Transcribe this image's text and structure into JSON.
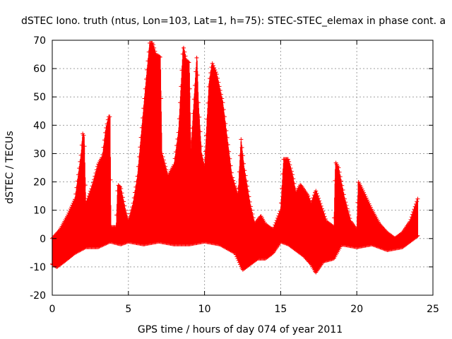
{
  "chart_data": {
    "type": "scatter",
    "title": "dSTEC Iono. truth (ntus, Lon=103, Lat=1, h=75): STEC-STEC_elemax in phase cont. a",
    "xlabel": "GPS time / hours of day 074 of year 2011",
    "ylabel": "dSTEC  / TECUs",
    "xlim": [
      0,
      25
    ],
    "ylim": [
      -20,
      70
    ],
    "xticks": [
      0,
      5,
      10,
      15,
      20,
      25
    ],
    "yticks": [
      -20,
      -10,
      0,
      10,
      20,
      30,
      40,
      50,
      60,
      70
    ],
    "xtick_labels": [
      "0",
      "5",
      "10",
      "15",
      "20",
      "25"
    ],
    "ytick_labels": [
      "-20",
      "-10",
      "0",
      "10",
      "20",
      "30",
      "40",
      "50",
      "60",
      "70"
    ],
    "grid": true,
    "marker": "plus",
    "color": "#ff0000",
    "envelope_upper": [
      [
        0.0,
        0
      ],
      [
        0.5,
        3
      ],
      [
        1.0,
        8
      ],
      [
        1.5,
        14
      ],
      [
        1.9,
        30
      ],
      [
        2.0,
        37
      ],
      [
        2.1,
        36
      ],
      [
        2.2,
        12
      ],
      [
        2.6,
        18
      ],
      [
        3.0,
        26
      ],
      [
        3.3,
        29
      ],
      [
        3.5,
        38
      ],
      [
        3.7,
        43
      ],
      [
        3.8,
        43
      ],
      [
        3.85,
        4
      ],
      [
        4.2,
        4
      ],
      [
        4.3,
        19
      ],
      [
        4.5,
        18
      ],
      [
        4.8,
        10
      ],
      [
        5.0,
        6
      ],
      [
        5.3,
        12
      ],
      [
        5.6,
        22
      ],
      [
        5.9,
        40
      ],
      [
        6.2,
        58
      ],
      [
        6.4,
        69
      ],
      [
        6.6,
        69
      ],
      [
        6.8,
        65
      ],
      [
        7.1,
        64
      ],
      [
        7.2,
        30
      ],
      [
        7.6,
        22
      ],
      [
        8.0,
        26
      ],
      [
        8.3,
        38
      ],
      [
        8.6,
        68
      ],
      [
        8.8,
        63
      ],
      [
        9.0,
        62
      ],
      [
        9.1,
        30
      ],
      [
        9.3,
        48
      ],
      [
        9.5,
        65
      ],
      [
        9.6,
        48
      ],
      [
        9.8,
        30
      ],
      [
        10.0,
        25
      ],
      [
        10.3,
        55
      ],
      [
        10.5,
        62
      ],
      [
        10.8,
        58
      ],
      [
        11.2,
        48
      ],
      [
        11.5,
        35
      ],
      [
        11.8,
        22
      ],
      [
        12.2,
        15
      ],
      [
        12.4,
        35
      ],
      [
        12.6,
        25
      ],
      [
        13.0,
        12
      ],
      [
        13.3,
        5
      ],
      [
        13.7,
        8
      ],
      [
        14.0,
        5
      ],
      [
        14.5,
        3
      ],
      [
        15.0,
        10
      ],
      [
        15.2,
        28
      ],
      [
        15.5,
        28
      ],
      [
        15.8,
        22
      ],
      [
        16.0,
        16
      ],
      [
        16.3,
        19
      ],
      [
        16.8,
        15
      ],
      [
        17.0,
        12
      ],
      [
        17.3,
        17
      ],
      [
        17.5,
        14
      ],
      [
        18.0,
        6
      ],
      [
        18.5,
        4
      ],
      [
        18.6,
        27
      ],
      [
        18.8,
        25
      ],
      [
        19.2,
        14
      ],
      [
        19.6,
        6
      ],
      [
        20.0,
        3
      ],
      [
        20.1,
        20
      ],
      [
        20.3,
        18
      ],
      [
        21.0,
        10
      ],
      [
        21.5,
        5
      ],
      [
        22.0,
        2
      ],
      [
        22.5,
        0
      ],
      [
        23.0,
        2
      ],
      [
        23.5,
        6
      ],
      [
        24.0,
        14
      ]
    ],
    "envelope_lower": [
      [
        0.0,
        -9
      ],
      [
        0.3,
        -10
      ],
      [
        0.8,
        -8
      ],
      [
        1.5,
        -5
      ],
      [
        2.2,
        -3
      ],
      [
        3.0,
        -3
      ],
      [
        3.8,
        -1
      ],
      [
        4.5,
        -2
      ],
      [
        5.0,
        -1
      ],
      [
        6.0,
        -2
      ],
      [
        7.0,
        -1
      ],
      [
        8.0,
        -2
      ],
      [
        9.0,
        -2
      ],
      [
        10.0,
        -1
      ],
      [
        11.0,
        -2
      ],
      [
        12.0,
        -5
      ],
      [
        12.5,
        -11
      ],
      [
        13.0,
        -9
      ],
      [
        13.5,
        -7
      ],
      [
        14.0,
        -7
      ],
      [
        14.5,
        -5
      ],
      [
        15.0,
        -1
      ],
      [
        15.5,
        -2
      ],
      [
        16.0,
        -4
      ],
      [
        16.5,
        -6
      ],
      [
        17.0,
        -9
      ],
      [
        17.3,
        -12
      ],
      [
        17.8,
        -8
      ],
      [
        18.5,
        -7
      ],
      [
        19.0,
        -2
      ],
      [
        20.0,
        -3
      ],
      [
        21.0,
        -2
      ],
      [
        22.0,
        -4
      ],
      [
        23.0,
        -3
      ],
      [
        24.0,
        1
      ]
    ]
  }
}
